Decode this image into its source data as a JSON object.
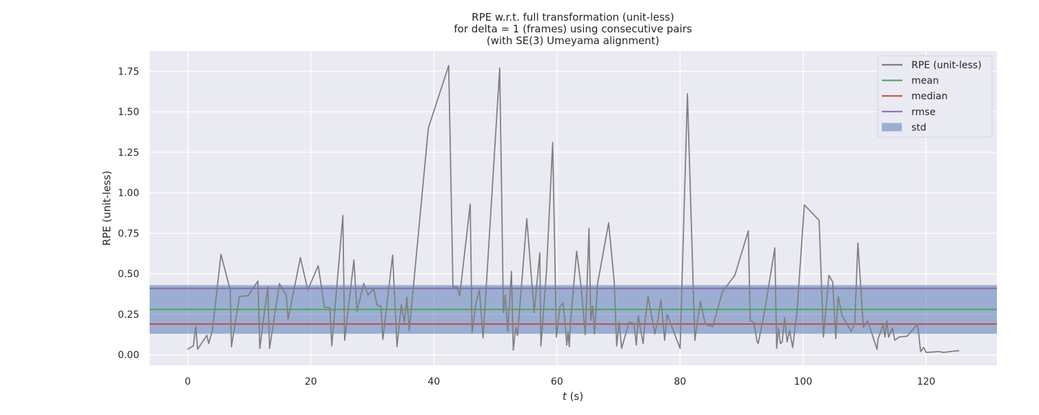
{
  "chart_data": {
    "type": "line",
    "title_lines": [
      "RPE w.r.t. full transformation (unit-less)",
      "for delta = 1 (frames) using consecutive pairs",
      "(with SE(3) Umeyama alignment)"
    ],
    "xlabel_italic": "t",
    "xlabel_rest": " (s)",
    "ylabel": "RPE (unit-less)",
    "xlim": [
      -6.2,
      131.5
    ],
    "ylim": [
      -0.065,
      1.875
    ],
    "x_ticks": [
      0,
      20,
      40,
      60,
      80,
      100,
      120
    ],
    "y_ticks": [
      0.0,
      0.25,
      0.5,
      0.75,
      1.0,
      1.25,
      1.5,
      1.75
    ],
    "y_tick_labels": [
      "0.00",
      "0.25",
      "0.50",
      "0.75",
      "1.00",
      "1.25",
      "1.50",
      "1.75"
    ],
    "grid": true,
    "legend_position": "top-right",
    "legend": [
      {
        "label": "RPE (unit-less)",
        "kind": "line",
        "color": "#808080"
      },
      {
        "label": "mean",
        "kind": "line",
        "color": "#55a868"
      },
      {
        "label": "median",
        "kind": "line",
        "color": "#c44e52"
      },
      {
        "label": "rmse",
        "kind": "line",
        "color": "#8172b3"
      },
      {
        "label": "std",
        "kind": "patch",
        "color": "#4c72b0"
      }
    ],
    "stats": {
      "mean": 0.28,
      "median": 0.19,
      "rmse": 0.41,
      "std_band": [
        0.13,
        0.43
      ]
    },
    "series": [
      {
        "name": "RPE (unit-less)",
        "color": "#808080",
        "x": [
          0.0,
          0.9,
          1.3,
          1.6,
          3.1,
          3.4,
          4.0,
          5.4,
          6.9,
          7.1,
          8.4,
          9.8,
          11.4,
          11.7,
          13.0,
          13.3,
          14.9,
          16.0,
          16.3,
          18.3,
          19.5,
          21.2,
          22.2,
          23.1,
          23.4,
          25.2,
          25.5,
          27.0,
          27.5,
          28.6,
          29.3,
          30.2,
          30.8,
          31.4,
          31.7,
          33.3,
          34.0,
          34.7,
          35.2,
          35.6,
          36.0,
          39.1,
          42.4,
          43.1,
          43.7,
          44.2,
          45.9,
          46.2,
          46.8,
          47.4,
          48.0,
          50.7,
          51.3,
          51.6,
          52.0,
          52.6,
          52.9,
          53.3,
          53.6,
          55.1,
          56.3,
          57.2,
          57.4,
          58.3,
          59.3,
          59.9,
          60.5,
          61.0,
          61.3,
          61.6,
          61.8,
          62.0,
          62.2,
          63.2,
          63.9,
          64.6,
          65.2,
          65.5,
          65.8,
          66.1,
          66.6,
          68.4,
          69.3,
          69.7,
          70.1,
          70.5,
          71.7,
          72.5,
          72.9,
          73.2,
          74.0,
          74.3,
          74.8,
          75.9,
          76.4,
          76.9,
          77.5,
          77.9,
          80.0,
          81.2,
          82.4,
          83.3,
          84.1,
          85.3,
          86.9,
          88.9,
          91.1,
          91.4,
          92.0,
          92.5,
          92.7,
          93.8,
          95.4,
          95.7,
          96.0,
          96.3,
          96.6,
          97.0,
          97.4,
          97.8,
          98.3,
          99.0,
          100.2,
          102.6,
          103.3,
          104.2,
          104.8,
          105.3,
          105.7,
          106.3,
          107.8,
          108.4,
          108.9,
          109.8,
          110.5,
          112.0,
          112.2,
          113.0,
          113.3,
          113.6,
          113.9,
          114.5,
          114.9,
          115.6,
          116.9,
          118.6,
          119.1,
          119.6,
          120.0,
          122.1,
          122.8,
          123.9,
          125.0,
          125.3
        ],
        "values": [
          0.035,
          0.055,
          0.175,
          0.035,
          0.12,
          0.07,
          0.15,
          0.62,
          0.4,
          0.05,
          0.36,
          0.365,
          0.455,
          0.04,
          0.42,
          0.04,
          0.44,
          0.37,
          0.22,
          0.6,
          0.4,
          0.55,
          0.295,
          0.29,
          0.055,
          0.86,
          0.09,
          0.585,
          0.27,
          0.44,
          0.37,
          0.405,
          0.305,
          0.3,
          0.095,
          0.615,
          0.05,
          0.31,
          0.2,
          0.355,
          0.15,
          1.4,
          1.785,
          0.42,
          0.42,
          0.365,
          0.93,
          0.135,
          0.31,
          0.4,
          0.105,
          1.77,
          0.26,
          0.37,
          0.145,
          0.515,
          0.03,
          0.17,
          0.12,
          0.84,
          0.26,
          0.63,
          0.055,
          0.52,
          1.31,
          0.11,
          0.3,
          0.32,
          0.2,
          0.06,
          0.145,
          0.05,
          0.2,
          0.64,
          0.425,
          0.125,
          0.78,
          0.215,
          0.3,
          0.13,
          0.44,
          0.815,
          0.45,
          0.055,
          0.2,
          0.04,
          0.2,
          0.195,
          0.06,
          0.24,
          0.07,
          0.2,
          0.36,
          0.13,
          0.215,
          0.34,
          0.09,
          0.25,
          0.04,
          1.61,
          0.09,
          0.33,
          0.19,
          0.175,
          0.39,
          0.49,
          0.765,
          0.21,
          0.2,
          0.085,
          0.07,
          0.28,
          0.66,
          0.04,
          0.165,
          0.07,
          0.08,
          0.23,
          0.08,
          0.15,
          0.045,
          0.26,
          0.925,
          0.83,
          0.11,
          0.49,
          0.45,
          0.1,
          0.36,
          0.245,
          0.145,
          0.195,
          0.69,
          0.17,
          0.21,
          0.035,
          0.1,
          0.185,
          0.11,
          0.21,
          0.11,
          0.165,
          0.09,
          0.11,
          0.115,
          0.19,
          0.02,
          0.045,
          0.015,
          0.02,
          0.015,
          0.02,
          0.025,
          0.025
        ]
      }
    ]
  }
}
